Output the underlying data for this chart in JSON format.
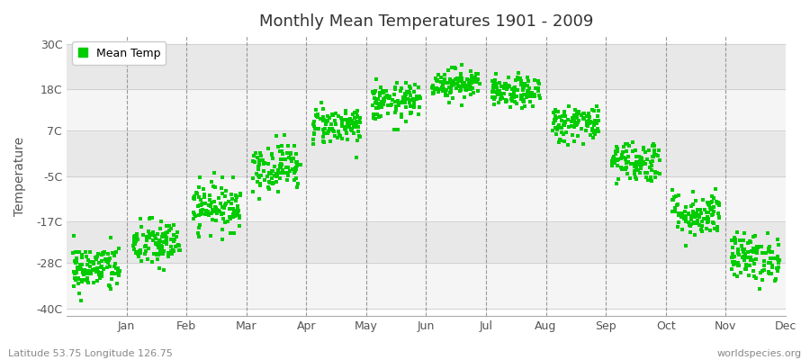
{
  "title": "Monthly Mean Temperatures 1901 - 2009",
  "ylabel": "Temperature",
  "yticks": [
    -40,
    -28,
    -17,
    -5,
    7,
    18,
    30
  ],
  "ytick_labels": [
    "-40C",
    "-28C",
    "-17C",
    "-5C",
    "7C",
    "18C",
    "30C"
  ],
  "ylim": [
    -42,
    32
  ],
  "months": [
    "Jan",
    "Feb",
    "Mar",
    "Apr",
    "May",
    "Jun",
    "Jul",
    "Aug",
    "Sep",
    "Oct",
    "Nov",
    "Dec"
  ],
  "dot_color": "#00cc00",
  "bg_color": "#ffffff",
  "band_color_light": "#f5f5f5",
  "band_color_dark": "#e8e8e8",
  "monthly_mean": [
    -29.5,
    -23.0,
    -13.0,
    -2.5,
    8.5,
    14.5,
    19.5,
    17.0,
    9.0,
    -1.0,
    -15.0,
    -26.5
  ],
  "monthly_std": [
    3.2,
    3.2,
    3.2,
    3.2,
    2.5,
    2.5,
    2.0,
    2.0,
    2.5,
    2.8,
    3.0,
    3.2
  ],
  "n_years": 109,
  "subtitle_left": "Latitude 53.75 Longitude 126.75",
  "subtitle_right": "worldspecies.org",
  "legend_label": "Mean Temp"
}
